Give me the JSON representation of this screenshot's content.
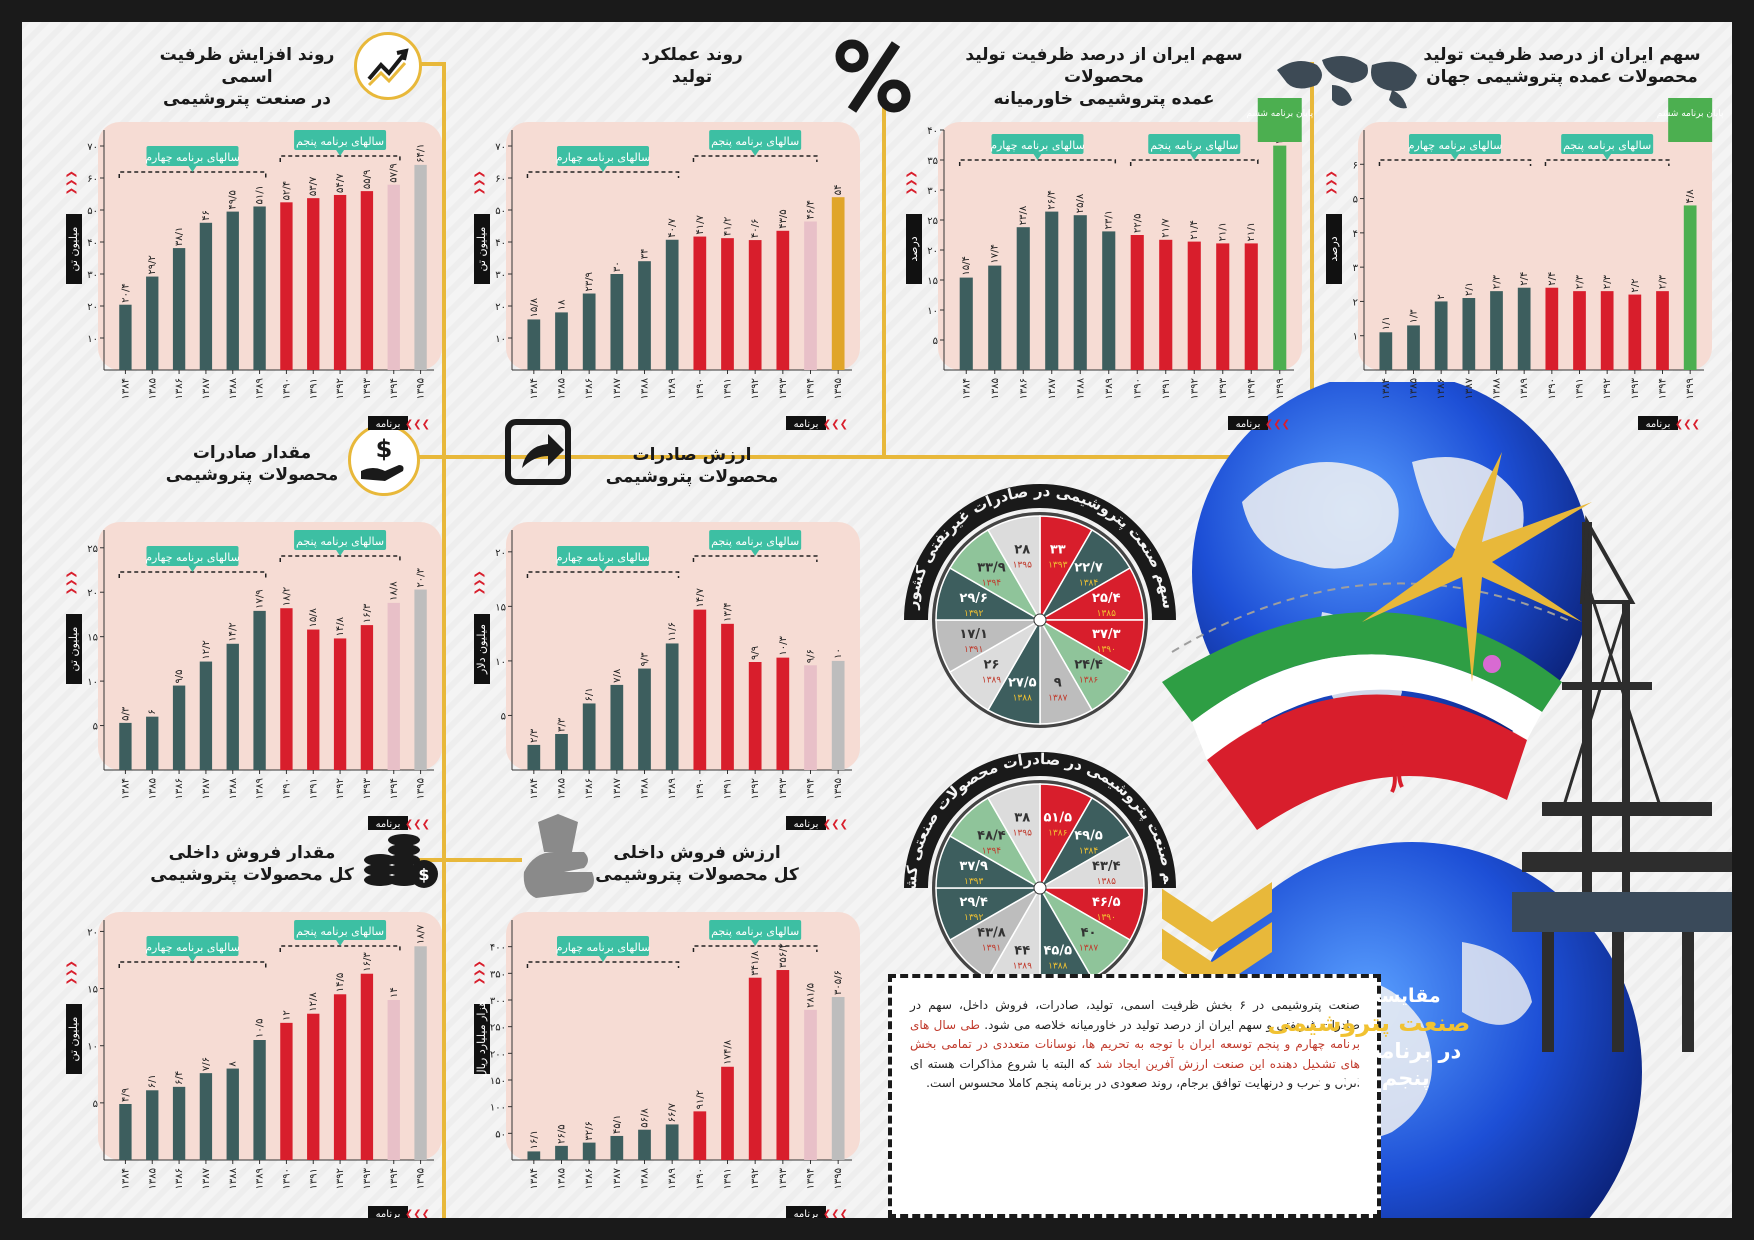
{
  "phase_labels": {
    "fourth": "سالهای برنامه چهارم",
    "fifth": "سالهای برنامه پنجم"
  },
  "x_axis_label": "برنامه",
  "colors": {
    "fourth": "#3d5e5e",
    "fifth": "#d81e2c",
    "faded": "#e8c0c8",
    "sixth_gray": "#bdbdbd",
    "sixth_gold": "#e0a52a",
    "sixth_green": "#4caf50",
    "accent": "#e8b83a",
    "panel_bg": "#f6dcd4",
    "callout": "#3dbfa3"
  },
  "panels": [
    {
      "id": "capacity",
      "title": [
        "روند افزایش ظرفیت اسمی",
        "در صنعت پتروشیمی"
      ],
      "icon": "trend-up-icon",
      "chart_data": {
        "type": "bar",
        "ylabel": "میلیون تن",
        "ylim": [
          0,
          75
        ],
        "yticks": [
          10,
          20,
          30,
          40,
          50,
          60,
          70
        ],
        "ytick_labels": [
          "۱۰",
          "۲۰",
          "۳۰",
          "۴۰",
          "۵۰",
          "۶۰",
          "۷۰"
        ],
        "categories": [
          "۱۳۸۴",
          "۱۳۸۵",
          "۱۳۸۶",
          "۱۳۸۷",
          "۱۳۸۸",
          "۱۳۸۹",
          "۱۳۹۰",
          "۱۳۹۱",
          "۱۳۹۲",
          "۱۳۹۳",
          "۱۳۹۴",
          "۱۳۹۵"
        ],
        "values": [
          20.4,
          29.2,
          38.1,
          46,
          49.5,
          51.1,
          52.4,
          53.7,
          54.7,
          55.9,
          57.9,
          64.1
        ],
        "value_labels": [
          "۲۰/۴",
          "۲۹/۲",
          "۳۸/۱",
          "۴۶",
          "۴۹/۵",
          "۵۱/۱",
          "۵۲/۴",
          "۵۳/۷",
          "۵۴/۷",
          "۵۵/۹",
          "۵۷/۹",
          "۶۴/۱"
        ],
        "groups": [
          "fourth",
          "fourth",
          "fourth",
          "fourth",
          "fourth",
          "fourth",
          "fifth",
          "fifth",
          "fifth",
          "fifth",
          "faded",
          "sixth_gray"
        ]
      }
    },
    {
      "id": "production",
      "title": [
        "روند عملکرد",
        "تولید"
      ],
      "icon": "percent-icon",
      "chart_data": {
        "type": "bar",
        "ylabel": "میلیون تن",
        "ylim": [
          0,
          75
        ],
        "yticks": [
          10,
          20,
          30,
          40,
          50,
          60,
          70
        ],
        "ytick_labels": [
          "۱۰",
          "۲۰",
          "۳۰",
          "۴۰",
          "۵۰",
          "۶۰",
          "۷۰"
        ],
        "categories": [
          "۱۳۸۴",
          "۱۳۸۵",
          "۱۳۸۶",
          "۱۳۸۷",
          "۱۳۸۸",
          "۱۳۸۹",
          "۱۳۹۰",
          "۱۳۹۱",
          "۱۳۹۲",
          "۱۳۹۳",
          "۱۳۹۴",
          "۱۳۹۵"
        ],
        "values": [
          15.8,
          18,
          23.9,
          30,
          34,
          40.7,
          41.7,
          41.2,
          40.6,
          43.5,
          46.4,
          54
        ],
        "value_labels": [
          "۱۵/۸",
          "۱۸",
          "۲۳/۹",
          "۳۰",
          "۳۴",
          "۴۰/۷",
          "۴۱/۷",
          "۴۱/۲",
          "۴۰/۶",
          "۴۳/۵",
          "۴۶/۴",
          "۵۴"
        ],
        "groups": [
          "fourth",
          "fourth",
          "fourth",
          "fourth",
          "fourth",
          "fourth",
          "fifth",
          "fifth",
          "fifth",
          "fifth",
          "faded",
          "sixth_gold"
        ]
      }
    },
    {
      "id": "middle-east-share",
      "title": [
        "سهم ایران از درصد ظرفیت تولید محصولات",
        "عمده پتروشیمی خاورمیانه"
      ],
      "sixth_callout": "پایان برنامه ششم",
      "chart_data": {
        "type": "bar",
        "ylabel": "درصد",
        "ylim": [
          0,
          40
        ],
        "yticks": [
          5,
          10,
          15,
          20,
          25,
          30,
          35,
          40
        ],
        "ytick_labels": [
          "۵",
          "۱۰",
          "۱۵",
          "۲۰",
          "۲۵",
          "۳۰",
          "۳۵",
          "۴۰"
        ],
        "categories": [
          "۱۳۸۴",
          "۱۳۸۵",
          "۱۳۸۶",
          "۱۳۸۷",
          "۱۳۸۸",
          "۱۳۸۹",
          "۱۳۹۰",
          "۱۳۹۱",
          "۱۳۹۲",
          "۱۳۹۳",
          "۱۳۹۴",
          "۱۳۹۹"
        ],
        "values": [
          15.4,
          17.4,
          23.8,
          26.4,
          25.8,
          23.1,
          22.5,
          21.7,
          21.4,
          21.1,
          21.1,
          37.4
        ],
        "value_labels": [
          "۱۵/۴",
          "۱۷/۴",
          "۲۳/۸",
          "۲۶/۴",
          "۲۵/۸",
          "۲۳/۱",
          "۲۲/۵",
          "۲۱/۷",
          "۲۱/۴",
          "۲۱/۱",
          "۲۱/۱",
          "۳۷/۴"
        ],
        "groups": [
          "fourth",
          "fourth",
          "fourth",
          "fourth",
          "fourth",
          "fourth",
          "fifth",
          "fifth",
          "fifth",
          "fifth",
          "fifth",
          "sixth_green"
        ]
      }
    },
    {
      "id": "world-share",
      "title": [
        "سهم ایران از درصد ظرفیت تولید",
        "محصولات عمده پتروشیمی جهان"
      ],
      "sixth_callout": "پایان برنامه ششم",
      "chart_data": {
        "type": "bar",
        "ylabel": "درصد",
        "ylim": [
          0,
          7
        ],
        "yticks": [
          1,
          2,
          3,
          4,
          5,
          6
        ],
        "ytick_labels": [
          "۱",
          "۲",
          "۳",
          "۴",
          "۵",
          "۶"
        ],
        "categories": [
          "۱۳۸۴",
          "۱۳۸۵",
          "۱۳۸۶",
          "۱۳۸۷",
          "۱۳۸۸",
          "۱۳۸۹",
          "۱۳۹۰",
          "۱۳۹۱",
          "۱۳۹۲",
          "۱۳۹۳",
          "۱۳۹۴",
          "۱۳۹۹"
        ],
        "values": [
          1.1,
          1.3,
          2,
          2.1,
          2.3,
          2.4,
          2.4,
          2.3,
          2.3,
          2.2,
          2.3,
          4.8
        ],
        "value_labels": [
          "۱/۱",
          "۱/۳",
          "۲",
          "۲/۱",
          "۲/۳",
          "۲/۴",
          "۲/۴",
          "۲/۳",
          "۲/۳",
          "۲/۲",
          "۲/۳",
          "۴/۸"
        ],
        "groups": [
          "fourth",
          "fourth",
          "fourth",
          "fourth",
          "fourth",
          "fourth",
          "fifth",
          "fifth",
          "fifth",
          "fifth",
          "fifth",
          "sixth_green"
        ]
      }
    },
    {
      "id": "export-volume",
      "title": [
        "مقدار صادرات",
        "محصولات پتروشیمی"
      ],
      "icon": "hand-dollar-icon",
      "chart_data": {
        "type": "bar",
        "ylabel": "میلیون تن",
        "ylim": [
          0,
          27
        ],
        "yticks": [
          5,
          10,
          15,
          20,
          25
        ],
        "ytick_labels": [
          "۵",
          "۱۰",
          "۱۵",
          "۲۰",
          "۲۵"
        ],
        "categories": [
          "۱۳۸۴",
          "۱۳۸۵",
          "۱۳۸۶",
          "۱۳۸۷",
          "۱۳۸۸",
          "۱۳۸۹",
          "۱۳۹۰",
          "۱۳۹۱",
          "۱۳۹۲",
          "۱۳۹۳",
          "۱۳۹۴",
          "۱۳۹۵"
        ],
        "values": [
          5.3,
          6,
          9.5,
          12.2,
          14.2,
          17.9,
          18.2,
          15.8,
          14.8,
          16.3,
          18.8,
          20.3
        ],
        "value_labels": [
          "۵/۳",
          "۶",
          "۹/۵",
          "۱۲/۲",
          "۱۴/۲",
          "۱۷/۹",
          "۱۸/۲",
          "۱۵/۸",
          "۱۴/۸",
          "۱۶/۳",
          "۱۸/۸",
          "۲۰/۳"
        ],
        "groups": [
          "fourth",
          "fourth",
          "fourth",
          "fourth",
          "fourth",
          "fourth",
          "fifth",
          "fifth",
          "fifth",
          "fifth",
          "faded",
          "sixth_gray"
        ]
      }
    },
    {
      "id": "export-value",
      "title": [
        "ارزش صادرات",
        "محصولات پتروشیمی"
      ],
      "icon": "share-arrow-icon",
      "chart_data": {
        "type": "bar",
        "ylabel": "میلیون دلار",
        "ylim": [
          0,
          22
        ],
        "yticks": [
          5,
          10,
          15,
          20
        ],
        "ytick_labels": [
          "۵",
          "۱۰",
          "۱۵",
          "۲۰"
        ],
        "categories": [
          "۱۳۸۴",
          "۱۳۸۵",
          "۱۳۸۶",
          "۱۳۸۷",
          "۱۳۸۸",
          "۱۳۸۹",
          "۱۳۹۰",
          "۱۳۹۱",
          "۱۳۹۲",
          "۱۳۹۳",
          "۱۳۹۴",
          "۱۳۹۵"
        ],
        "values": [
          2.3,
          3.3,
          6.1,
          7.8,
          9.3,
          11.6,
          14.7,
          13.4,
          9.9,
          10.3,
          9.6,
          10
        ],
        "value_labels": [
          "۲/۳",
          "۳/۳",
          "۶/۱",
          "۷/۸",
          "۹/۳",
          "۱۱/۶",
          "۱۴/۷",
          "۱۳/۴",
          "۹/۹",
          "۱۰/۳",
          "۹/۶",
          "۱۰"
        ],
        "groups": [
          "fourth",
          "fourth",
          "fourth",
          "fourth",
          "fourth",
          "fourth",
          "fifth",
          "fifth",
          "fifth",
          "fifth",
          "faded",
          "sixth_gray"
        ]
      }
    },
    {
      "id": "domestic-volume",
      "title": [
        "مقدار فروش داخلی",
        "کل محصولات پتروشیمی"
      ],
      "icon": "coins-icon",
      "chart_data": {
        "type": "bar",
        "ylabel": "میلیون تن",
        "ylim": [
          0,
          21
        ],
        "yticks": [
          5,
          10,
          15,
          20
        ],
        "ytick_labels": [
          "۵",
          "۱۰",
          "۱۵",
          "۲۰"
        ],
        "categories": [
          "۱۳۸۴",
          "۱۳۸۵",
          "۱۳۸۶",
          "۱۳۸۷",
          "۱۳۸۸",
          "۱۳۸۹",
          "۱۳۹۰",
          "۱۳۹۱",
          "۱۳۹۲",
          "۱۳۹۳",
          "۱۳۹۴",
          "۱۳۹۵"
        ],
        "values": [
          4.9,
          6.1,
          6.4,
          7.6,
          8,
          10.5,
          12,
          12.8,
          14.5,
          16.3,
          14,
          18.7
        ],
        "value_labels": [
          "۴/۹",
          "۶/۱",
          "۶/۴",
          "۷/۶",
          "۸",
          "۱۰/۵",
          "۱۲",
          "۱۲/۸",
          "۱۴/۵",
          "۱۶/۳",
          "۱۴",
          "۱۸/۷"
        ],
        "groups": [
          "fourth",
          "fourth",
          "fourth",
          "fourth",
          "fourth",
          "fourth",
          "fifth",
          "fifth",
          "fifth",
          "fifth",
          "faded",
          "sixth_gray"
        ]
      }
    },
    {
      "id": "domestic-value",
      "title": [
        "ارزش فروش داخلی",
        "کل محصولات پتروشیمی"
      ],
      "icon": "cash-hand-icon",
      "chart_data": {
        "type": "bar",
        "ylabel": "هزار میلیارد ریال",
        "ylim": [
          0,
          450
        ],
        "yticks": [
          50,
          100,
          150,
          200,
          250,
          300,
          350,
          400
        ],
        "ytick_labels": [
          "۵۰",
          "۱۰۰",
          "۱۵۰",
          "۲۰۰",
          "۲۵۰",
          "۳۰۰",
          "۳۵۰",
          "۴۰۰"
        ],
        "categories": [
          "۱۳۸۴",
          "۱۳۸۵",
          "۱۳۸۶",
          "۱۳۸۷",
          "۱۳۸۸",
          "۱۳۸۹",
          "۱۳۹۰",
          "۱۳۹۱",
          "۱۳۹۲",
          "۱۳۹۳",
          "۱۳۹۴",
          "۱۳۹۵"
        ],
        "values": [
          16.1,
          26.5,
          32.6,
          45.1,
          56.8,
          66.7,
          91.2,
          174.8,
          341.8,
          356.2,
          281.5,
          305.6
        ],
        "value_labels": [
          "۱۶/۱",
          "۲۶/۵",
          "۳۲/۶",
          "۴۵/۱",
          "۵۶/۸",
          "۶۶/۷",
          "۹۱/۲",
          "۱۷۴/۸",
          "۳۴۱/۸",
          "۳۵۶/۲",
          "۲۸۱/۵",
          "۳۰۵/۶"
        ],
        "groups": [
          "fourth",
          "fourth",
          "fourth",
          "fourth",
          "fourth",
          "fourth",
          "fifth",
          "fifth",
          "fifth",
          "fifth",
          "faded",
          "sixth_gray"
        ]
      }
    }
  ],
  "wheels": [
    {
      "id": "non-oil-exports",
      "ribbon": "سهم صنعت پتروشیمی در صادرات غیرنفتی کشور",
      "sectors": [
        {
          "value": "۳۳",
          "year": "۱۳۹۳",
          "color": "#d81e2c"
        },
        {
          "value": "۲۲/۷",
          "year": "۱۳۸۴",
          "color": "#3d5e5e"
        },
        {
          "value": "۲۵/۴",
          "year": "۱۳۸۵",
          "color": "#d81e2c"
        },
        {
          "value": "۳۷/۳",
          "year": "۱۳۹۰",
          "color": "#d81e2c"
        },
        {
          "value": "۲۴/۴",
          "year": "۱۳۸۶",
          "color": "#8fc49a"
        },
        {
          "value": "۹",
          "year": "۱۳۸۷",
          "color": "#bdbdbd"
        },
        {
          "value": "۲۷/۵",
          "year": "۱۳۸۸",
          "color": "#3d5e5e"
        },
        {
          "value": "۲۶",
          "year": "۱۳۸۹",
          "color": "#dcdcdc"
        },
        {
          "value": "۱۷/۱",
          "year": "۱۳۹۱",
          "color": "#bdbdbd"
        },
        {
          "value": "۲۹/۶",
          "year": "۱۳۹۲",
          "color": "#3d5e5e"
        },
        {
          "value": "۳۳/۹",
          "year": "۱۳۹۴",
          "color": "#8fc49a"
        },
        {
          "value": "۲۸",
          "year": "۱۳۹۵",
          "color": "#dcdcdc"
        }
      ]
    },
    {
      "id": "industrial-exports",
      "ribbon": "سهم صنعت پتروشیمی در صادرات محصولات صنعتی کشور",
      "sectors": [
        {
          "value": "۵۱/۵",
          "year": "۱۳۸۶",
          "color": "#d81e2c"
        },
        {
          "value": "۴۹/۵",
          "year": "۱۳۸۴",
          "color": "#3d5e5e"
        },
        {
          "value": "۴۳/۴",
          "year": "۱۳۸۵",
          "color": "#dcdcdc"
        },
        {
          "value": "۴۶/۵",
          "year": "۱۳۹۰",
          "color": "#d81e2c"
        },
        {
          "value": "۴۰",
          "year": "۱۳۸۷",
          "color": "#8fc49a"
        },
        {
          "value": "۴۵/۵",
          "year": "۱۳۸۸",
          "color": "#3d5e5e"
        },
        {
          "value": "۴۴",
          "year": "۱۳۸۹",
          "color": "#dcdcdc"
        },
        {
          "value": "۴۳/۸",
          "year": "۱۳۹۱",
          "color": "#bdbdbd"
        },
        {
          "value": "۲۹/۴",
          "year": "۱۳۹۲",
          "color": "#3d5e5e"
        },
        {
          "value": "۳۷/۹",
          "year": "۱۳۹۳",
          "color": "#3d5e5e"
        },
        {
          "value": "۴۸/۴",
          "year": "۱۳۹۴",
          "color": "#8fc49a"
        },
        {
          "value": "۳۸",
          "year": "۱۳۹۵",
          "color": "#dcdcdc"
        }
      ]
    }
  ],
  "main_title": {
    "line1": "مقایسه عملکرد",
    "line2": "صنعت پتروشیمی",
    "line3": "در برنامه چهارم و پنجم توسعه"
  },
  "summary": {
    "normal1": "صنعت پتروشیمی در ۶ بخش ظرفیت اسمی، تولید، صادرات، فروش داخل، سهم در صادرات غیرنفتی و سهم ایران از درصد تولید در خاورمیانه خلاصه می شود. ",
    "red": "طی سال های برنامه چهارم و پنجم توسعه ایران با توجه به تحریم ها، نوسانات متعددی در تمامی بخش های تشکیل دهنده این صنعت ارزش آفرین ایجاد شد",
    "normal2": " که البته با شروع مذاکرات هسته ای ایران و غرب و درنهایت توافق برجام، روند صعودی در برنامه پنجم کاملا محسوس است."
  }
}
